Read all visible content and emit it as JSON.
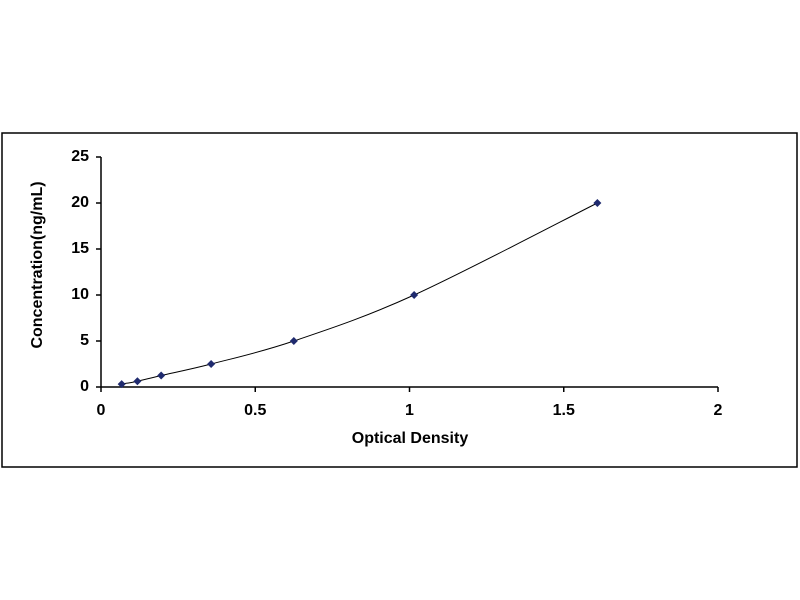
{
  "chart_data": {
    "type": "scatter",
    "x_label": "Optical Density",
    "y_label": "Concentration(ng/mL)",
    "x": [
      0.067,
      0.118,
      0.195,
      0.357,
      0.625,
      1.015,
      1.609
    ],
    "values": [
      0.312,
      0.625,
      1.25,
      2.5,
      5,
      10,
      20
    ],
    "color": "#1f2a6e",
    "line": true,
    "xlim": [
      0,
      2
    ],
    "xticks": [
      0,
      0.5,
      1,
      1.5,
      2
    ],
    "ylim": [
      0,
      25
    ],
    "yticks": [
      0,
      5,
      10,
      15,
      20,
      25
    ],
    "grid": false
  }
}
